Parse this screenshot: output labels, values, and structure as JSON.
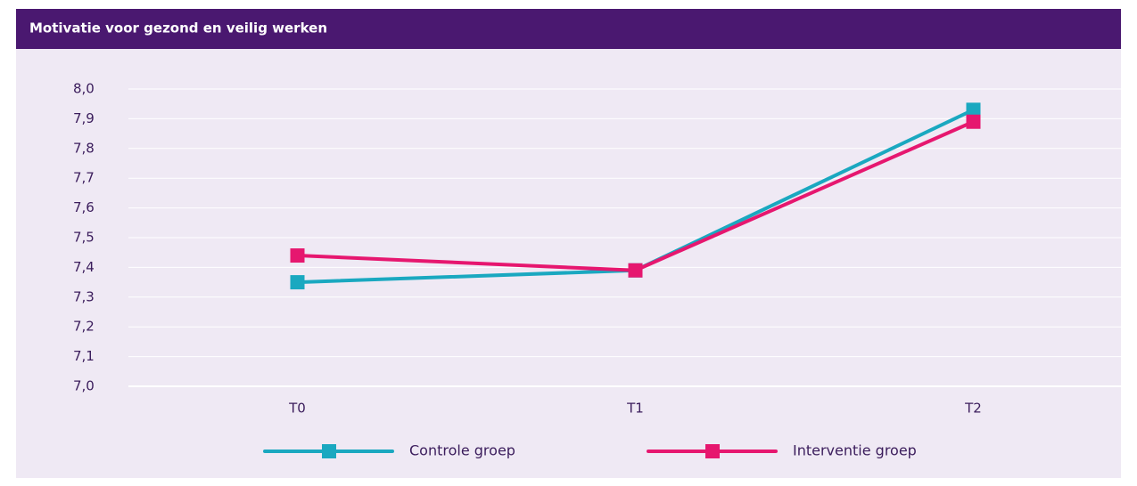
{
  "chart_data": {
    "type": "line",
    "title": "Motivatie voor gezond en veilig werken",
    "categories": [
      "T0",
      "T1",
      "T2"
    ],
    "series": [
      {
        "name": "Controle groep",
        "color": "#1aa8c0",
        "values": [
          7.35,
          7.39,
          7.93
        ]
      },
      {
        "name": "Interventie groep",
        "color": "#e6176f",
        "values": [
          7.44,
          7.39,
          7.89
        ]
      }
    ],
    "ylim": [
      7.0,
      8.0
    ],
    "yticks": [
      {
        "value": 7.0,
        "label": "7,0"
      },
      {
        "value": 7.1,
        "label": "7,1"
      },
      {
        "value": 7.2,
        "label": "7,2"
      },
      {
        "value": 7.3,
        "label": "7,3"
      },
      {
        "value": 7.4,
        "label": "7,4"
      },
      {
        "value": 7.5,
        "label": "7,5"
      },
      {
        "value": 7.6,
        "label": "7,6"
      },
      {
        "value": 7.7,
        "label": "7,7"
      },
      {
        "value": 7.8,
        "label": "7,8"
      },
      {
        "value": 7.9,
        "label": "7,9"
      },
      {
        "value": 8.0,
        "label": "8,0"
      }
    ],
    "grid": true,
    "legend": "bottom"
  }
}
